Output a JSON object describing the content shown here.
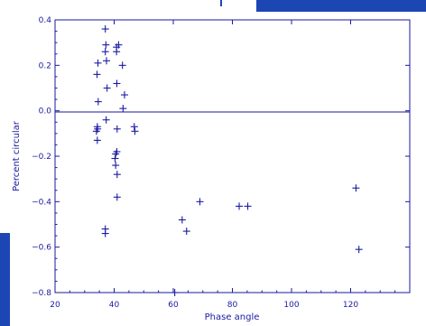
{
  "colors": {
    "ink": "#1a1aa0",
    "band": "#1c46b4"
  },
  "chart_data": {
    "type": "scatter",
    "title": "",
    "xlabel": "Phase angle",
    "ylabel": "Percent circular",
    "xlim": [
      20,
      140
    ],
    "ylim": [
      -0.8,
      0.4
    ],
    "x_ticks": [
      20,
      40,
      60,
      80,
      100,
      120
    ],
    "y_ticks": [
      -0.8,
      -0.6,
      -0.4,
      -0.2,
      0.0,
      0.2,
      0.4
    ],
    "x_tick_labels": [
      "20",
      "40",
      "60",
      "80",
      "100",
      "120"
    ],
    "y_tick_labels": [
      "−0.8",
      "−0.6",
      "−0.4",
      "−0.2",
      "0.0",
      "0.2",
      "0.4"
    ],
    "reference_line_y": 0.0,
    "marker": "+",
    "grid": false,
    "series": [
      {
        "points": [
          [
            37.0,
            0.36
          ],
          [
            37.2,
            0.29
          ],
          [
            37.0,
            0.26
          ],
          [
            37.4,
            0.22
          ],
          [
            34.5,
            0.21
          ],
          [
            34.2,
            0.16
          ],
          [
            37.6,
            0.1
          ],
          [
            34.6,
            0.04
          ],
          [
            37.3,
            -0.04
          ],
          [
            34.3,
            -0.07
          ],
          [
            34.4,
            -0.08
          ],
          [
            34.0,
            -0.09
          ],
          [
            34.3,
            -0.13
          ],
          [
            40.8,
            0.28
          ],
          [
            40.8,
            0.26
          ],
          [
            41.5,
            0.29
          ],
          [
            42.8,
            0.2
          ],
          [
            40.9,
            0.12
          ],
          [
            43.5,
            0.07
          ],
          [
            43.0,
            0.01
          ],
          [
            41.0,
            -0.08
          ],
          [
            40.9,
            -0.18
          ],
          [
            40.5,
            -0.19
          ],
          [
            40.3,
            -0.21
          ],
          [
            40.5,
            -0.24
          ],
          [
            41.0,
            -0.28
          ],
          [
            41.0,
            -0.38
          ],
          [
            46.8,
            -0.07
          ],
          [
            47.0,
            -0.09
          ],
          [
            37.0,
            -0.52
          ],
          [
            37.0,
            -0.54
          ],
          [
            63.0,
            -0.48
          ],
          [
            64.5,
            -0.53
          ],
          [
            69.0,
            -0.4
          ],
          [
            82.3,
            -0.42
          ],
          [
            85.2,
            -0.42
          ],
          [
            60.5,
            -0.8
          ],
          [
            121.8,
            -0.34
          ],
          [
            122.8,
            -0.61
          ]
        ]
      }
    ]
  }
}
